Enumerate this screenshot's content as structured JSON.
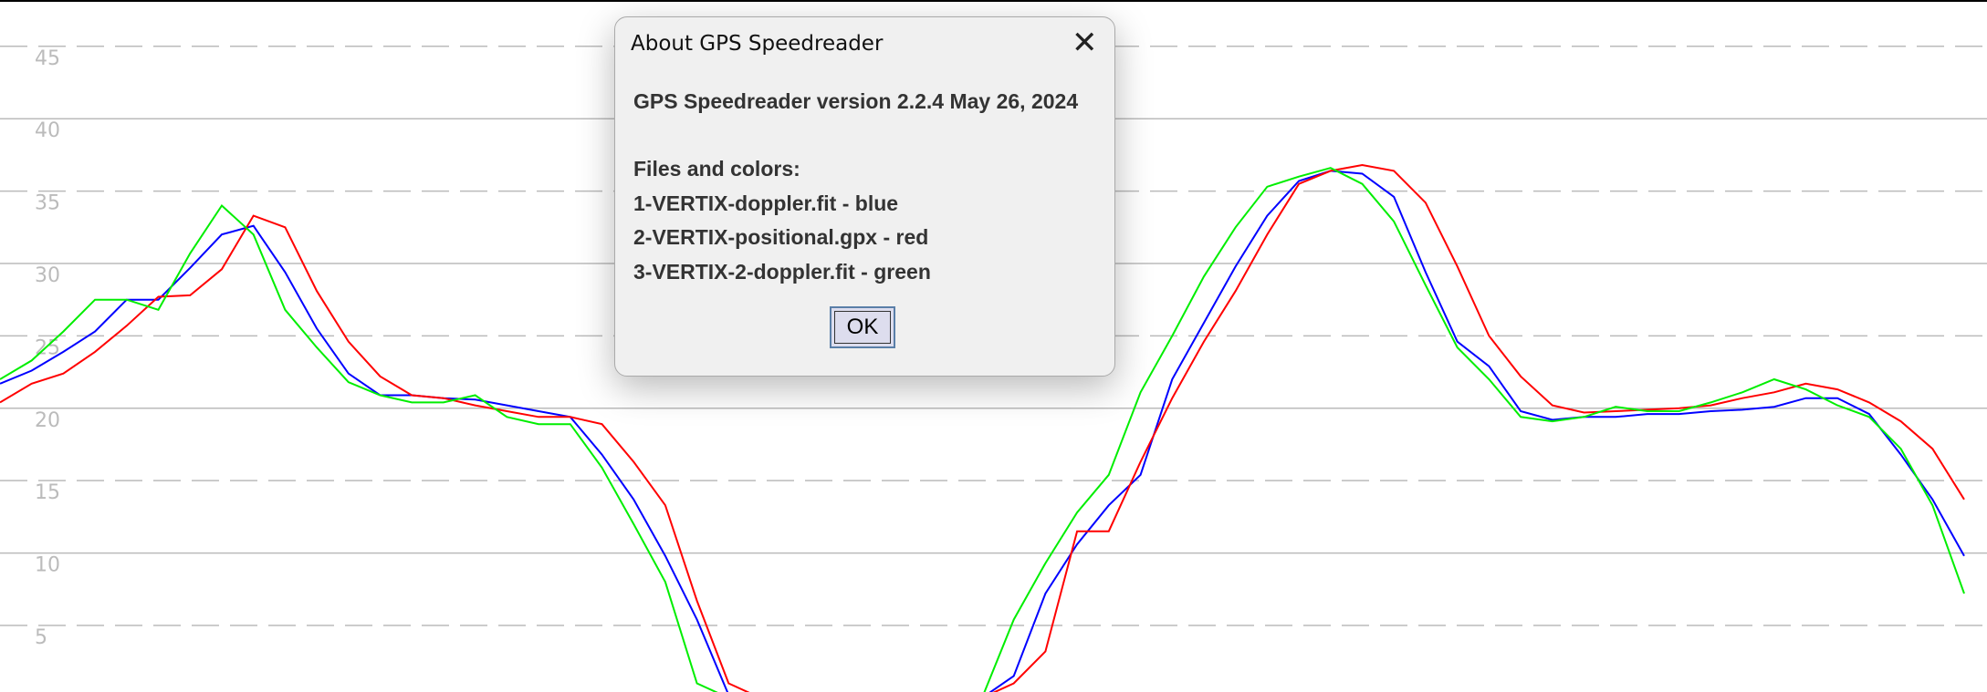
{
  "chart_data": {
    "type": "line",
    "ylim": [
      0.4,
      48.2
    ],
    "yticks": [
      5,
      10,
      15,
      20,
      25,
      30,
      35,
      40,
      45
    ],
    "grid": true,
    "series": [
      {
        "color": "#0000ff",
        "values": [
          21.7,
          22.6,
          23.9,
          25.3,
          27.5,
          27.5,
          29.7,
          32.0,
          32.6,
          29.4,
          25.5,
          22.4,
          20.9,
          20.9,
          20.7,
          20.6,
          20.2,
          19.8,
          19.4,
          16.8,
          13.7,
          9.8,
          5.4,
          0.2,
          0,
          0,
          0,
          0,
          0,
          0,
          0,
          0,
          1.5,
          7.2,
          10.6,
          13.3,
          15.4,
          22.0,
          25.9,
          29.8,
          33.3,
          35.7,
          36.4,
          36.2,
          34.6,
          29.4,
          24.6,
          22.9,
          19.8,
          19.2,
          19.4,
          19.4,
          19.6,
          19.6,
          19.8,
          19.9,
          20.1,
          20.7,
          20.7,
          19.6,
          16.8,
          13.7,
          9.8
        ]
      },
      {
        "color": "#ff0000",
        "values": [
          20.4,
          21.7,
          22.4,
          23.9,
          25.7,
          27.7,
          27.8,
          29.6,
          33.3,
          32.5,
          28.1,
          24.6,
          22.2,
          20.9,
          20.7,
          20.2,
          19.8,
          19.4,
          19.4,
          18.9,
          16.3,
          13.3,
          6.7,
          1.0,
          0,
          0,
          0,
          0,
          0,
          0,
          0,
          0,
          1.0,
          3.2,
          11.5,
          11.5,
          16.3,
          20.7,
          24.6,
          28.1,
          32.0,
          35.5,
          36.4,
          36.8,
          36.4,
          34.2,
          29.8,
          25.0,
          22.2,
          20.2,
          19.7,
          19.8,
          19.9,
          20.0,
          20.2,
          20.7,
          21.1,
          21.7,
          21.3,
          20.4,
          19.1,
          17.2,
          13.7
        ]
      },
      {
        "color": "#00ee00",
        "values": [
          22.0,
          23.3,
          25.3,
          27.5,
          27.5,
          26.8,
          30.7,
          34.0,
          32.0,
          26.8,
          24.2,
          21.8,
          20.9,
          20.4,
          20.4,
          20.9,
          19.4,
          18.9,
          18.9,
          15.9,
          12.0,
          8.0,
          1.0,
          0,
          0,
          0,
          0,
          0,
          0,
          0,
          0,
          0,
          5.4,
          9.3,
          12.8,
          15.4,
          21.1,
          25.0,
          29.1,
          32.5,
          35.3,
          36.0,
          36.6,
          35.5,
          32.9,
          28.5,
          24.2,
          22.0,
          19.4,
          19.1,
          19.4,
          20.1,
          19.8,
          19.8,
          20.4,
          21.1,
          22.0,
          21.3,
          20.2,
          19.4,
          17.2,
          13.3,
          7.2
        ]
      }
    ]
  },
  "dialog": {
    "title": "About GPS Speedreader",
    "version": "GPS Speedreader version 2.2.4 May 26, 2024",
    "files_heading": "Files and colors:",
    "files": [
      "1-VERTIX-doppler.fit - blue",
      "2-VERTIX-positional.gpx - red",
      "3-VERTIX-2-doppler.fit - green"
    ],
    "ok": "OK"
  }
}
